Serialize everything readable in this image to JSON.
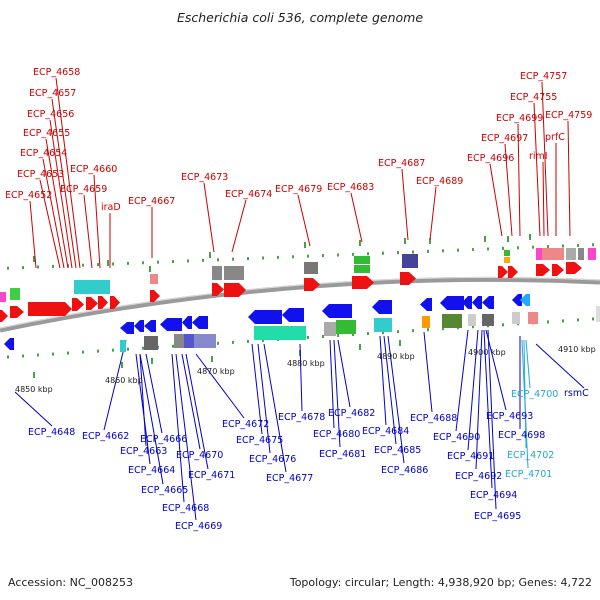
{
  "title": "Escherichia coli 536, complete genome",
  "footer": {
    "accession": "Accession: NC_008253",
    "info": "Topology: circular; Length: 4,938,920 bp; Genes: 4,722"
  },
  "colors": {
    "forward_label": "#cc0000",
    "reverse_label": "#0000cc",
    "rna_label": "#22aacc",
    "backbone": "#888888",
    "tick": "#1a8a1a"
  },
  "scale_ticks": [
    "4850 kbp",
    "4860 kbp",
    "4870 kbp",
    "4880 kbp",
    "4890 kbp",
    "4900 kbp",
    "4910 kbp"
  ],
  "top_labels": [
    "ECP_4658",
    "ECP_4657",
    "ECP_4656",
    "ECP_4655",
    "ECP_4654",
    "ECP_4653",
    "ECP_4652",
    "ECP_4660",
    "ECP_4659",
    "iraD",
    "ECP_4667",
    "ECP_4673",
    "ECP_4674",
    "ECP_4679",
    "ECP_4683",
    "ECP_4687",
    "ECP_4689",
    "ECP_4696",
    "ECP_4697",
    "ECP_4699",
    "ECP_4755",
    "ECP_4757",
    "rimI",
    "prfC",
    "ECP_4759"
  ],
  "bottom_labels": [
    "ECP_4648",
    "ECP_4662",
    "ECP_4666",
    "ECP_4663",
    "ECP_4664",
    "ECP_4665",
    "ECP_4668",
    "ECP_4669",
    "ECP_4670",
    "ECP_4671",
    "ECP_4672",
    "ECP_4675",
    "ECP_4676",
    "ECP_4677",
    "ECP_4678",
    "ECP_4680",
    "ECP_4681",
    "ECP_4682",
    "ECP_4684",
    "ECP_4685",
    "ECP_4686",
    "ECP_4688",
    "ECP_4690",
    "ECP_4691",
    "ECP_4692",
    "ECP_4693",
    "ECP_4694",
    "ECP_4695",
    "ECP_4698",
    "ECP_4700",
    "ECP_4702",
    "ECP_4701",
    "rsmC"
  ]
}
